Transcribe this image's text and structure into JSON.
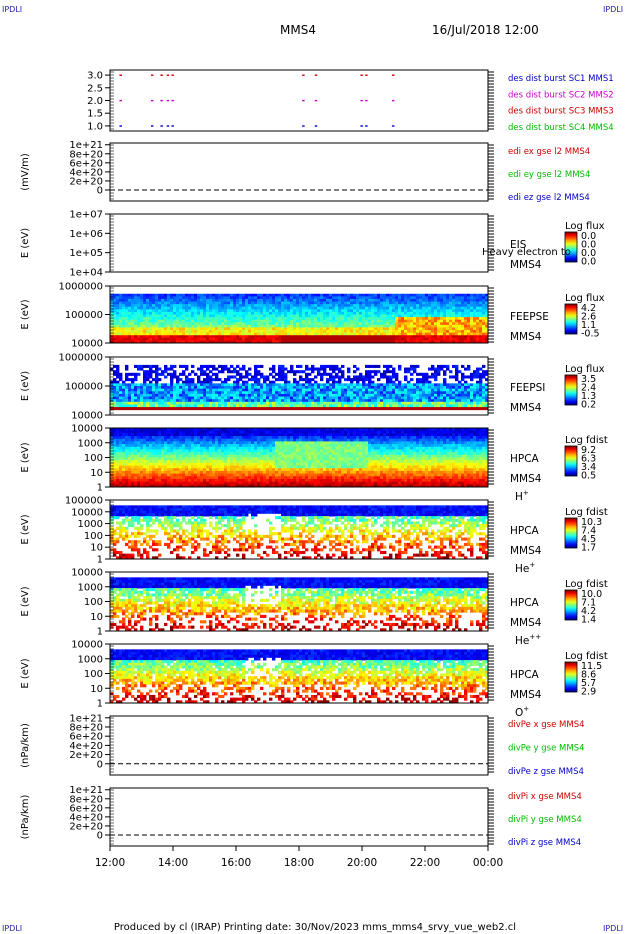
{
  "header": {
    "corner_tl": "IPDLI",
    "corner_tr": "IPDLI",
    "corner_bl": "IPDLI",
    "corner_br": "IPDLI",
    "title": "MMS4",
    "datetime": "16/Jul/2018 12:00"
  },
  "footer": {
    "text": "Produced by cl (IRAP)    Printing date: 30/Nov/2023    mms_mms4_srvy_vue_web2.cl"
  },
  "chart_data": [
    {
      "type": "scatter",
      "panel": "des-dist-burst",
      "ylim": [
        0.8,
        3.2
      ],
      "yticks": [
        "3.0",
        "2.5",
        "2.0",
        "1.5",
        "1.0"
      ],
      "ytick_values": [
        3.0,
        2.5,
        2.0,
        1.5,
        1.0
      ],
      "legend": [
        {
          "text": "des dist burst SC1 MMS1",
          "color": "#0000cc"
        },
        {
          "text": "des dist burst SC2 MMS2",
          "color": "#cc00cc"
        },
        {
          "text": "des dist burst SC3 MMS3",
          "color": "#cc0000"
        },
        {
          "text": "des dist burst SC4 MMS4",
          "color": "#00bb00"
        }
      ],
      "series": [
        {
          "color": "#cc0000",
          "y": 3.0,
          "x_hours": [
            12.3,
            13.3,
            13.6,
            13.8,
            13.95,
            18.1,
            18.5,
            19.95,
            20.1,
            20.95
          ]
        },
        {
          "color": "#cc00cc",
          "y": 2.0,
          "x_hours": [
            12.3,
            13.3,
            13.6,
            13.8,
            13.95,
            18.1,
            18.5,
            19.95,
            20.1,
            20.95
          ]
        },
        {
          "color": "#0000cc",
          "y": 1.0,
          "x_hours": [
            12.3,
            13.3,
            13.6,
            13.8,
            13.95,
            18.1,
            18.5,
            19.95,
            20.1,
            20.95
          ]
        }
      ]
    },
    {
      "type": "line",
      "panel": "edi",
      "ylabel": "(mV/m)",
      "yticks": [
        "1e+21",
        "8e+20",
        "6e+20",
        "4e+20",
        "2e+20",
        "0"
      ],
      "ytick_values": [
        1e+21,
        8e+20,
        6e+20,
        4e+20,
        2e+20,
        0
      ],
      "legend": [
        {
          "text": "edi ex gse l2 MMS4",
          "color": "#cc0000"
        },
        {
          "text": "edi ey gse l2 MMS4",
          "color": "#00bb00"
        },
        {
          "text": "edi ez gse l2 MMS4",
          "color": "#0000cc"
        }
      ]
    },
    {
      "type": "heatmap",
      "panel": "eis",
      "ylabel": "E (eV)",
      "yticks": [
        "1e+07",
        "1e+06",
        "1e+05",
        "1e+04"
      ],
      "log_y": true,
      "ylim": [
        10000.0,
        10000000.0
      ],
      "labels": [
        "EIS",
        "MMS4"
      ],
      "overlay_text": "Heavy electron to",
      "colorbar": {
        "title": "Log flux",
        "ticks": [
          "0.0",
          "0.0",
          "0.0",
          "0.0"
        ]
      }
    },
    {
      "type": "heatmap",
      "panel": "feepse",
      "ylabel": "E (eV)",
      "yticks": [
        "1000000",
        "100000",
        "10000"
      ],
      "log_y": true,
      "ylim": [
        10000.0,
        1000000.0
      ],
      "labels": [
        "FEEPSE",
        "MMS4"
      ],
      "colorbar": {
        "title": "Log flux",
        "ticks": [
          "4.2",
          "2.6",
          "1.1",
          "-0.5"
        ]
      }
    },
    {
      "type": "heatmap",
      "panel": "feepsi",
      "ylabel": "E (eV)",
      "yticks": [
        "1000000",
        "100000",
        "10000"
      ],
      "log_y": true,
      "ylim": [
        10000.0,
        1000000.0
      ],
      "labels": [
        "FEEPSI",
        "MMS4"
      ],
      "colorbar": {
        "title": "Log flux",
        "ticks": [
          "3.5",
          "2.4",
          "1.3",
          "0.2"
        ]
      }
    },
    {
      "type": "heatmap",
      "panel": "hpca-h",
      "ylabel": "E (eV)",
      "yticks": [
        "10000",
        "1000",
        "100",
        "10",
        "1"
      ],
      "log_y": true,
      "ylim": [
        1,
        40000
      ],
      "labels": [
        "HPCA",
        "MMS4"
      ],
      "species": "H",
      "species_sup": "+",
      "colorbar": {
        "title": "Log fdist",
        "ticks": [
          "9.2",
          "6.3",
          "3.4",
          "0.5"
        ]
      }
    },
    {
      "type": "heatmap",
      "panel": "hpca-he",
      "ylabel": "E (eV)",
      "yticks": [
        "100000",
        "10000",
        "1000",
        "100",
        "10",
        "1"
      ],
      "log_y": true,
      "ylim": [
        1,
        100000
      ],
      "labels": [
        "HPCA",
        "MMS4"
      ],
      "species": "He",
      "species_sup": "+",
      "colorbar": {
        "title": "Log fdist",
        "ticks": [
          "10.3",
          "7.4",
          "4.5",
          "1.7"
        ]
      }
    },
    {
      "type": "heatmap",
      "panel": "hpca-hepp",
      "ylabel": "E (eV)",
      "yticks": [
        "10000",
        "1000",
        "100",
        "10",
        "1"
      ],
      "log_y": true,
      "ylim": [
        1,
        40000
      ],
      "labels": [
        "HPCA",
        "MMS4"
      ],
      "species": "He",
      "species_sup": "++",
      "colorbar": {
        "title": "Log fdist",
        "ticks": [
          "10.0",
          "7.1",
          "4.2",
          "1.4"
        ]
      }
    },
    {
      "type": "heatmap",
      "panel": "hpca-o",
      "ylabel": "E (eV)",
      "yticks": [
        "10000",
        "1000",
        "100",
        "10",
        "1"
      ],
      "log_y": true,
      "ylim": [
        1,
        40000
      ],
      "labels": [
        "HPCA",
        "MMS4"
      ],
      "species": "O",
      "species_sup": "+",
      "colorbar": {
        "title": "Log fdist",
        "ticks": [
          "11.5",
          "8.6",
          "5.7",
          "2.9"
        ]
      }
    },
    {
      "type": "line",
      "panel": "divpe",
      "ylabel": "(nPa/km)",
      "yticks": [
        "1e+21",
        "8e+20",
        "6e+20",
        "4e+20",
        "2e+20",
        "0"
      ],
      "ytick_values": [
        1e+21,
        8e+20,
        6e+20,
        4e+20,
        2e+20,
        0
      ],
      "legend": [
        {
          "text": "divPe x gse MMS4",
          "color": "#cc0000"
        },
        {
          "text": "divPe y gse MMS4",
          "color": "#00bb00"
        },
        {
          "text": "divPe z gse MMS4",
          "color": "#0000cc"
        }
      ]
    },
    {
      "type": "line",
      "panel": "divpi",
      "ylabel": "(nPa/km)",
      "yticks": [
        "1e+21",
        "8e+20",
        "6e+20",
        "4e+20",
        "2e+20",
        "0"
      ],
      "ytick_values": [
        1e+21,
        8e+20,
        6e+20,
        4e+20,
        2e+20,
        0
      ],
      "legend": [
        {
          "text": "divPi x gse MMS4",
          "color": "#cc0000"
        },
        {
          "text": "divPi y gse MMS4",
          "color": "#00bb00"
        },
        {
          "text": "divPi z gse MMS4",
          "color": "#0000cc"
        }
      ]
    }
  ],
  "xaxis": {
    "ticks": [
      "12:00",
      "14:00",
      "16:00",
      "18:00",
      "20:00",
      "22:00",
      "00:00"
    ],
    "tick_hours": [
      12,
      14,
      16,
      18,
      20,
      22,
      24
    ],
    "xlim_hours": [
      12,
      24
    ]
  }
}
